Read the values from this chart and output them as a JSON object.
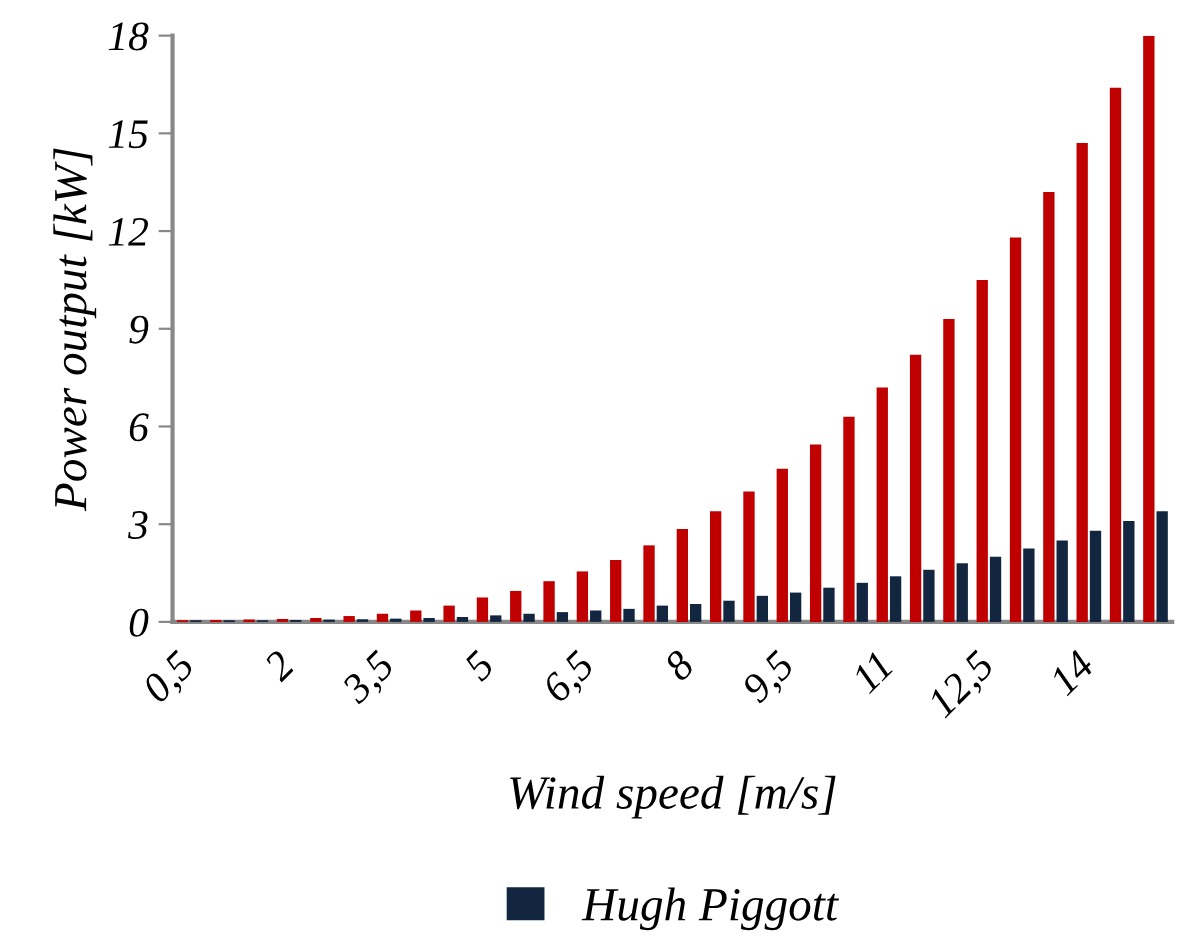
{
  "chart_data": {
    "type": "bar",
    "xlabel": "Wind speed [m/s]",
    "ylabel": "Power output [kW]",
    "categories": [
      "0,5",
      null,
      null,
      "2",
      null,
      null,
      "3,5",
      null,
      null,
      "5",
      null,
      null,
      "6,5",
      null,
      null,
      "8",
      null,
      null,
      "9,5",
      null,
      null,
      "11",
      null,
      null,
      "12,5",
      null,
      null,
      "14",
      null,
      null
    ],
    "series": [
      {
        "color": "#c00000",
        "values": [
          0.05,
          0.06,
          0.07,
          0.09,
          0.12,
          0.18,
          0.25,
          0.35,
          0.5,
          0.75,
          0.95,
          1.25,
          1.55,
          1.9,
          2.35,
          2.85,
          3.4,
          4.0,
          4.7,
          5.45,
          6.3,
          7.2,
          8.2,
          9.3,
          10.5,
          11.8,
          13.2,
          14.7,
          16.4,
          18
        ]
      },
      {
        "name": "Hugh Piggott",
        "color": "#12263f",
        "values": [
          0.05,
          0.05,
          0.05,
          0.06,
          0.07,
          0.08,
          0.1,
          0.12,
          0.15,
          0.2,
          0.25,
          0.3,
          0.35,
          0.4,
          0.5,
          0.55,
          0.65,
          0.8,
          0.9,
          1.05,
          1.2,
          1.4,
          1.6,
          1.8,
          2.0,
          2.25,
          2.5,
          2.8,
          3.1,
          3.4
        ]
      }
    ],
    "ylim": [
      0,
      18
    ],
    "yticks": [
      0,
      3,
      6,
      9,
      12,
      15,
      18
    ],
    "grid": false,
    "legend": "bottom"
  }
}
